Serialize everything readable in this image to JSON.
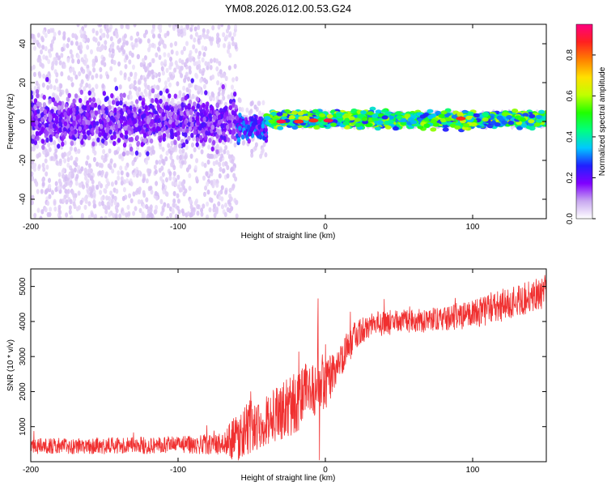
{
  "title": "YM08.2026.012.00.53.G24",
  "chart_data": [
    {
      "type": "heatmap",
      "xlabel": "Height of straight line (km)",
      "ylabel": "Frequency (Hz)",
      "xlim": [
        -200,
        150
      ],
      "ylim": [
        -50,
        50
      ],
      "xticks": [
        -200,
        -100,
        0,
        100
      ],
      "yticks": [
        -40,
        -20,
        0,
        20,
        40
      ],
      "grid": false,
      "colorbar": {
        "label": "Normalized spectral amplitude",
        "ticks": [
          0.0,
          0.2,
          0.4,
          0.6,
          0.8
        ],
        "tick_labels": [
          "0.0",
          "0.2",
          "0.4",
          "0.6",
          "0.8"
        ],
        "range": [
          0,
          0.95
        ],
        "colormap": [
          "#ffffff",
          "#c8a8f0",
          "#8000ff",
          "#2020ff",
          "#00c8ff",
          "#00ff80",
          "#20ff00",
          "#c0ff00",
          "#ffe000",
          "#ff8000",
          "#ff2020",
          "#ff0080"
        ]
      },
      "regions": [
        {
          "x_range": [
            -200,
            -60
          ],
          "freq_center": 0,
          "strong_band_halfwidth": 10,
          "scatter_extent": 50,
          "amplitude": 0.2
        },
        {
          "x_range": [
            -60,
            -40
          ],
          "freq_center": -3,
          "strong_band_halfwidth": 5,
          "scatter_extent": 15,
          "amplitude": 0.3
        },
        {
          "x_range": [
            -40,
            150
          ],
          "freq_center": 1,
          "strong_band_halfwidth": 3,
          "scatter_extent": 4,
          "amplitude": 0.55
        }
      ],
      "hotspots": [
        {
          "x": -30,
          "y": 0,
          "value": 0.9
        },
        {
          "x": -18,
          "y": 0,
          "value": 0.85
        },
        {
          "x": -8,
          "y": 0.5,
          "value": 0.85
        },
        {
          "x": 2,
          "y": 0.5,
          "value": 0.9
        },
        {
          "x": 92,
          "y": 1.5,
          "value": 0.85
        }
      ]
    },
    {
      "type": "line",
      "xlabel": "Height of straight line (km)",
      "ylabel": "SNR (10 * v/v)",
      "xlim": [
        -200,
        150
      ],
      "ylim": [
        0,
        5500
      ],
      "xticks": [
        -200,
        -100,
        0,
        100
      ],
      "yticks": [
        1000,
        2000,
        3000,
        4000,
        5000
      ],
      "grid": false,
      "series": [
        {
          "color": "#f03030",
          "trend_x": [
            -200,
            -150,
            -100,
            -70,
            -60,
            -50,
            -40,
            -30,
            -20,
            -10,
            -5,
            0,
            5,
            10,
            15,
            20,
            30,
            50,
            70,
            100,
            120,
            150
          ],
          "trend_y": [
            450,
            450,
            480,
            500,
            700,
            1000,
            1200,
            1400,
            1700,
            2100,
            2000,
            2200,
            2500,
            2900,
            3200,
            3600,
            3900,
            4000,
            4050,
            4200,
            4450,
            4850
          ],
          "noise_amplitude": [
            220,
            230,
            250,
            300,
            700,
            800,
            700,
            800,
            900,
            800,
            900,
            700,
            600,
            500,
            500,
            400,
            350,
            350,
            350,
            400,
            450,
            450
          ],
          "spikes": [
            {
              "x": -5,
              "y": 4650
            },
            {
              "x": -4,
              "y": 50
            }
          ]
        }
      ]
    }
  ]
}
